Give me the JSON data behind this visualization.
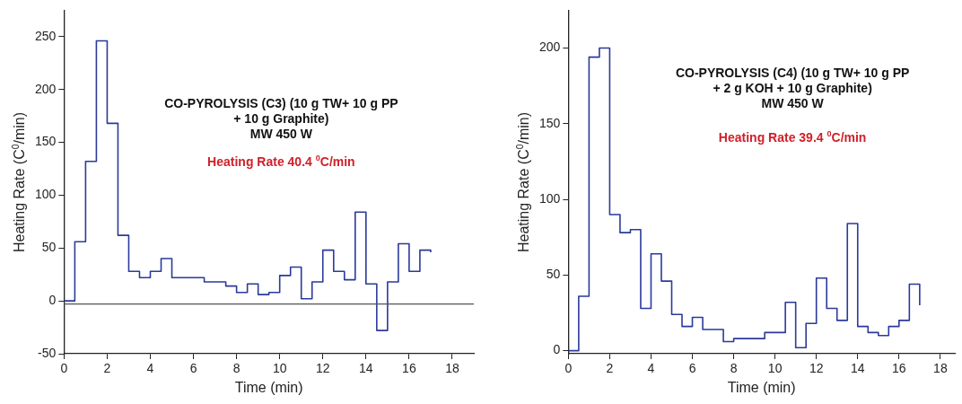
{
  "chart_data": [
    {
      "type": "step",
      "xlabel": "Time (min)",
      "ylabel": "Heating Rate (C$^{0}$/min)",
      "annotations": [
        "CO-PYROLYSIS (C3) (10 g TW+ 10 g PP\n+ 10 g Graphite)\nMW 450 W",
        "Heating Rate 40.4 $^{0}$C/min"
      ],
      "x": [
        0,
        0.5,
        1,
        1.5,
        2,
        2.5,
        3,
        3.5,
        4,
        4.5,
        5,
        5.5,
        6,
        6.5,
        7,
        7.5,
        8,
        8.5,
        9,
        9.5,
        10,
        10.5,
        11,
        11.5,
        12,
        12.5,
        13,
        13.5,
        14,
        14.5,
        15,
        15.5,
        16,
        16.5,
        17
      ],
      "series": [
        {
          "color": "#2b3a9a",
          "values": [
            0,
            56,
            132,
            246,
            168,
            62,
            28,
            22,
            28,
            40,
            22,
            22,
            22,
            18,
            18,
            14,
            8,
            16,
            6,
            8,
            24,
            32,
            2,
            18,
            48,
            28,
            20,
            84,
            16,
            -28,
            18,
            54,
            28,
            48,
            46
          ]
        }
      ],
      "xlim": [
        0,
        19
      ],
      "xticks": [
        0,
        2,
        4,
        6,
        8,
        10,
        12,
        14,
        16,
        18
      ],
      "ylim": [
        -50,
        275
      ],
      "yticks": [
        -50,
        0,
        50,
        100,
        150,
        200,
        250
      ],
      "ref_lines": [
        {
          "axis": "y",
          "value": -3,
          "color": "#555555"
        }
      ],
      "grid": false,
      "legend": false,
      "marker": "none",
      "line_style": "solid"
    },
    {
      "type": "step",
      "xlabel": "Time (min)",
      "ylabel": "Heating Rate (C$^{0}$/min)",
      "annotations": [
        "CO-PYROLYSIS (C4) (10 g TW+ 10 g PP\n+ 2 g KOH + 10 g Graphite)\nMW 450 W",
        "Heating Rate 39.4 $^{0}$C/min"
      ],
      "x": [
        0,
        0.5,
        1,
        1.5,
        2,
        2.5,
        3,
        3.5,
        4,
        4.5,
        5,
        5.5,
        6,
        6.5,
        7,
        7.5,
        8,
        8.5,
        9,
        9.5,
        10,
        10.5,
        11,
        11.5,
        12,
        12.5,
        13,
        13.5,
        14,
        14.5,
        15,
        15.5,
        16,
        16.5,
        17
      ],
      "series": [
        {
          "color": "#2b3a9a",
          "values": [
            0,
            36,
            194,
            200,
            90,
            78,
            80,
            28,
            64,
            46,
            24,
            16,
            22,
            14,
            14,
            6,
            8,
            8,
            8,
            12,
            12,
            32,
            2,
            18,
            48,
            28,
            20,
            84,
            16,
            12,
            10,
            16,
            20,
            44,
            30
          ]
        }
      ],
      "xlim": [
        0,
        18.7
      ],
      "xticks": [
        0,
        2,
        4,
        6,
        8,
        10,
        12,
        14,
        16,
        18
      ],
      "ylim": [
        -2,
        225
      ],
      "yticks": [
        0,
        50,
        100,
        150,
        200
      ],
      "grid": false,
      "legend": false,
      "marker": "none",
      "line_style": "solid"
    }
  ]
}
